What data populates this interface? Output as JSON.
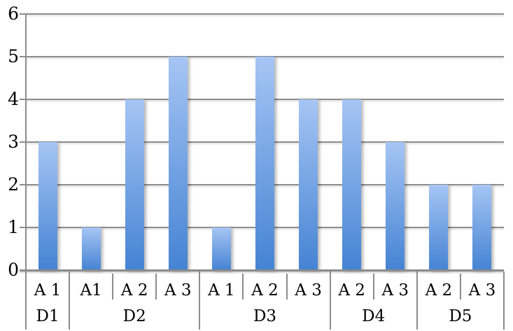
{
  "chart_data": {
    "type": "bar",
    "title": "",
    "xlabel": "",
    "ylabel": "",
    "ylim": [
      0,
      6
    ],
    "y_tick_labels": [
      "0",
      "1",
      "2",
      "3",
      "4",
      "5",
      "6"
    ],
    "grid": "horizontal",
    "legend": "none",
    "groups": [
      {
        "label": "D1",
        "bars": [
          {
            "label": "A 1",
            "value": 3
          }
        ]
      },
      {
        "label": "D2",
        "bars": [
          {
            "label": "A1",
            "value": 1
          },
          {
            "label": "A 2",
            "value": 4
          },
          {
            "label": "A 3",
            "value": 5
          }
        ]
      },
      {
        "label": "D3",
        "bars": [
          {
            "label": "A 1",
            "value": 1
          },
          {
            "label": "A 2",
            "value": 5
          },
          {
            "label": "A 3",
            "value": 4
          }
        ]
      },
      {
        "label": "D4",
        "bars": [
          {
            "label": "A 2",
            "value": 4
          },
          {
            "label": "A 3",
            "value": 3
          }
        ]
      },
      {
        "label": "D5",
        "bars": [
          {
            "label": "A 2",
            "value": 2
          },
          {
            "label": "A 3",
            "value": 2
          }
        ]
      }
    ],
    "colors": {
      "bar_gradient_top": "#a6c5f4",
      "bar_gradient_bottom": "#4583d3",
      "gridline": "#8c8c8c",
      "separator": "#8c8c8c",
      "text": "#000000",
      "background": "#ffffff"
    }
  }
}
